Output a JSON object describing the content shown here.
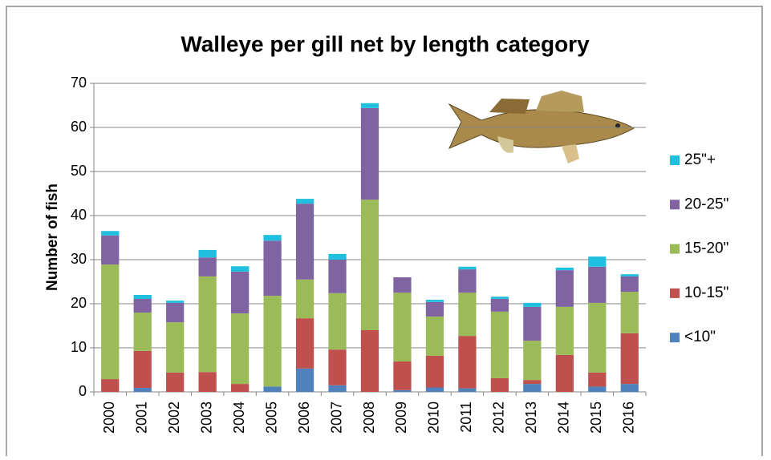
{
  "chart_data": {
    "type": "stacked-bar",
    "title": "Walleye per gill net by length category",
    "y_label": "Number of fish",
    "categories": [
      "2000",
      "2001",
      "2002",
      "2003",
      "2004",
      "2005",
      "2006",
      "2007",
      "2008",
      "2009",
      "2010",
      "2011",
      "2012",
      "2013",
      "2014",
      "2015",
      "2016"
    ],
    "series": [
      {
        "name": "<10\"",
        "color": "#4f81bd",
        "values": [
          0,
          0.9,
          0,
          0,
          0,
          1.2,
          5.3,
          1.5,
          0,
          0.4,
          1.0,
          0.8,
          0,
          1.8,
          0,
          1.2,
          1.8
        ]
      },
      {
        "name": "10-15\"",
        "color": "#c0504d",
        "values": [
          2.9,
          8.4,
          4.4,
          4.5,
          1.8,
          0,
          11.4,
          8.1,
          14.0,
          6.5,
          7.2,
          11.9,
          3.1,
          0.9,
          8.4,
          3.2,
          11.5
        ]
      },
      {
        "name": "15-20\"",
        "color": "#9bbb59",
        "values": [
          26.0,
          8.7,
          11.4,
          21.7,
          16.0,
          20.6,
          8.8,
          12.8,
          29.6,
          15.6,
          8.9,
          9.8,
          15.1,
          8.9,
          10.9,
          15.8,
          9.4
        ]
      },
      {
        "name": "20-25\"",
        "color": "#8064a2",
        "values": [
          6.6,
          3.1,
          4.4,
          4.3,
          9.5,
          12.5,
          17.2,
          7.6,
          20.8,
          3.5,
          3.3,
          5.3,
          2.9,
          7.7,
          8.3,
          8.2,
          3.5
        ]
      },
      {
        "name": "25\"+",
        "color": "#1fbfdf",
        "values": [
          1.0,
          0.9,
          0.5,
          1.7,
          1.2,
          1.3,
          1.1,
          1.3,
          1.1,
          0,
          0.5,
          0.6,
          0.5,
          0.9,
          0.6,
          2.3,
          0.5
        ]
      }
    ],
    "ylim": [
      0,
      70
    ],
    "yticks": [
      0,
      10,
      20,
      30,
      40,
      50,
      60,
      70
    ],
    "grid": true,
    "legend": "right"
  }
}
